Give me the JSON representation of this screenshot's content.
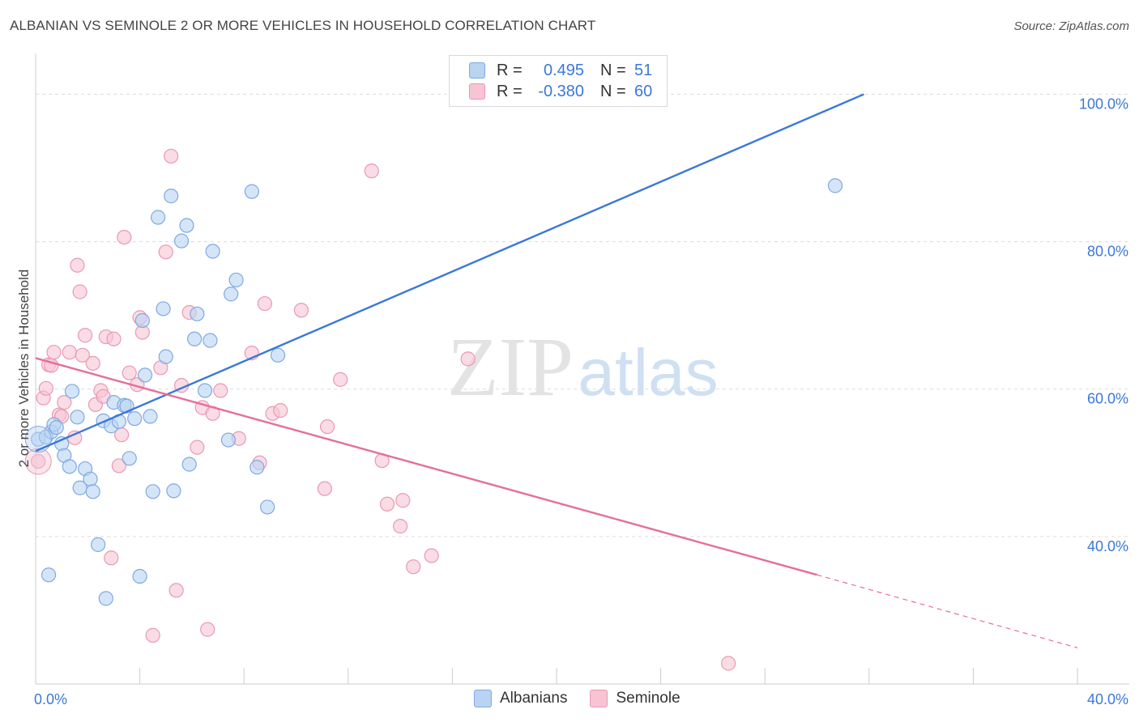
{
  "title": "ALBANIAN VS SEMINOLE 2 OR MORE VEHICLES IN HOUSEHOLD CORRELATION CHART",
  "source": "Source: ZipAtlas.com",
  "watermark": {
    "zip": "ZIP",
    "atlas": "atlas"
  },
  "legend": {
    "rows": [
      {
        "r_label": "R =",
        "r_value": "0.495",
        "n_label": "N =",
        "n_value": "51",
        "fill": "#b9d3f3",
        "stroke": "#7fa9e0"
      },
      {
        "r_label": "R =",
        "r_value": "-0.380",
        "n_label": "N =",
        "n_value": "60",
        "fill": "#f7c4d4",
        "stroke": "#ea98b3"
      }
    ]
  },
  "bottom_legend": [
    {
      "label": "Albanians",
      "fill": "#b9d3f3",
      "stroke": "#7fa9e0"
    },
    {
      "label": "Seminole",
      "fill": "#f7c4d4",
      "stroke": "#ea98b3"
    }
  ],
  "chart_data": {
    "type": "scatter",
    "ylabel": "2 or more Vehicles in Household",
    "x_ticks": [
      "0.0%",
      "40.0%"
    ],
    "y_ticks": [
      "40.0%",
      "60.0%",
      "80.0%",
      "100.0%"
    ],
    "xlim": [
      0,
      40
    ],
    "ylim": [
      20,
      104
    ],
    "grid": true,
    "colors": {
      "albanians": "#3b78d8",
      "seminole": "#e46f9b",
      "axis_text": "#3b78d8"
    },
    "series": [
      {
        "name": "Albanians",
        "trend": {
          "x0": 0.0,
          "y0": 51.6,
          "x1": 31.8,
          "y1": 100.0
        },
        "points": [
          [
            0.1,
            53.2
          ],
          [
            0.4,
            53.5
          ],
          [
            0.5,
            34.8
          ],
          [
            0.6,
            54.2
          ],
          [
            0.7,
            55.2
          ],
          [
            0.8,
            54.8
          ],
          [
            1.0,
            52.6
          ],
          [
            1.1,
            51.0
          ],
          [
            1.3,
            49.5
          ],
          [
            1.4,
            59.7
          ],
          [
            1.6,
            56.2
          ],
          [
            1.7,
            46.6
          ],
          [
            1.9,
            49.2
          ],
          [
            2.1,
            47.8
          ],
          [
            2.2,
            46.1
          ],
          [
            2.4,
            38.9
          ],
          [
            2.6,
            55.7
          ],
          [
            2.7,
            31.6
          ],
          [
            2.9,
            55.0
          ],
          [
            3.0,
            58.2
          ],
          [
            3.2,
            55.6
          ],
          [
            3.4,
            57.8
          ],
          [
            3.5,
            57.7
          ],
          [
            3.6,
            50.6
          ],
          [
            3.8,
            56.0
          ],
          [
            4.0,
            34.6
          ],
          [
            4.2,
            61.9
          ],
          [
            4.4,
            56.3
          ],
          [
            4.5,
            46.1
          ],
          [
            4.7,
            83.3
          ],
          [
            4.9,
            70.9
          ],
          [
            5.0,
            64.4
          ],
          [
            5.2,
            86.2
          ],
          [
            5.3,
            46.2
          ],
          [
            5.6,
            80.1
          ],
          [
            5.8,
            82.2
          ],
          [
            5.9,
            49.8
          ],
          [
            6.1,
            66.8
          ],
          [
            6.2,
            70.2
          ],
          [
            6.5,
            59.8
          ],
          [
            6.7,
            66.6
          ],
          [
            6.8,
            78.7
          ],
          [
            7.4,
            53.1
          ],
          [
            7.5,
            72.9
          ],
          [
            7.7,
            74.8
          ],
          [
            8.3,
            86.8
          ],
          [
            8.5,
            49.4
          ],
          [
            8.9,
            44.0
          ],
          [
            9.3,
            64.6
          ],
          [
            4.1,
            69.3
          ],
          [
            30.7,
            87.6
          ]
        ]
      },
      {
        "name": "Seminole",
        "trend": {
          "x0": 0.0,
          "y0": 64.2,
          "x1": 30.0,
          "y1": 34.8,
          "dash_x1": 40.0,
          "dash_y1": 24.9
        },
        "points": [
          [
            0.1,
            50.2
          ],
          [
            0.3,
            58.8
          ],
          [
            0.4,
            60.1
          ],
          [
            0.5,
            63.3
          ],
          [
            0.6,
            63.2
          ],
          [
            0.7,
            65.0
          ],
          [
            0.9,
            56.5
          ],
          [
            1.0,
            56.3
          ],
          [
            1.1,
            58.2
          ],
          [
            1.3,
            65.0
          ],
          [
            1.5,
            53.4
          ],
          [
            1.6,
            76.8
          ],
          [
            1.7,
            73.2
          ],
          [
            1.8,
            64.6
          ],
          [
            1.9,
            67.3
          ],
          [
            2.2,
            63.5
          ],
          [
            2.3,
            57.9
          ],
          [
            2.5,
            59.8
          ],
          [
            2.6,
            59.0
          ],
          [
            2.7,
            67.1
          ],
          [
            2.9,
            37.1
          ],
          [
            3.0,
            66.8
          ],
          [
            3.2,
            49.6
          ],
          [
            3.3,
            53.8
          ],
          [
            3.4,
            80.6
          ],
          [
            3.6,
            62.2
          ],
          [
            3.9,
            60.6
          ],
          [
            4.0,
            69.7
          ],
          [
            4.1,
            67.7
          ],
          [
            4.5,
            26.6
          ],
          [
            4.8,
            62.9
          ],
          [
            5.0,
            78.6
          ],
          [
            5.2,
            91.6
          ],
          [
            5.4,
            32.7
          ],
          [
            5.6,
            60.5
          ],
          [
            5.9,
            70.4
          ],
          [
            6.2,
            52.1
          ],
          [
            6.4,
            57.5
          ],
          [
            6.6,
            27.4
          ],
          [
            6.8,
            56.7
          ],
          [
            7.1,
            59.8
          ],
          [
            7.8,
            53.3
          ],
          [
            8.3,
            64.9
          ],
          [
            8.6,
            50.0
          ],
          [
            8.8,
            71.6
          ],
          [
            9.1,
            56.7
          ],
          [
            9.4,
            57.1
          ],
          [
            10.2,
            70.7
          ],
          [
            11.1,
            46.5
          ],
          [
            11.2,
            54.9
          ],
          [
            11.7,
            61.3
          ],
          [
            12.9,
            89.6
          ],
          [
            13.3,
            50.3
          ],
          [
            13.5,
            44.4
          ],
          [
            14.0,
            41.4
          ],
          [
            14.1,
            44.9
          ],
          [
            14.5,
            35.9
          ],
          [
            15.2,
            37.4
          ],
          [
            16.6,
            64.1
          ],
          [
            26.6,
            22.8
          ]
        ]
      }
    ]
  }
}
